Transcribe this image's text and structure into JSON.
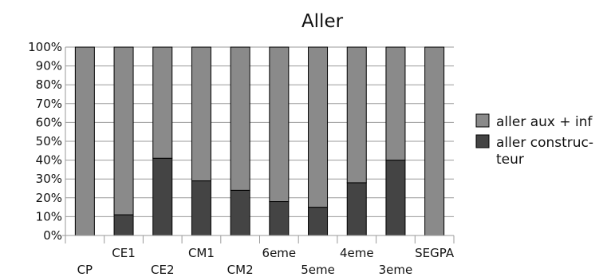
{
  "chart_data": {
    "type": "bar",
    "stacked": true,
    "percent_stacked": true,
    "title": "Aller",
    "xlabel": "",
    "ylabel": "",
    "ylim": [
      0,
      100
    ],
    "yticks": [
      "0%",
      "10%",
      "20%",
      "30%",
      "40%",
      "50%",
      "60%",
      "70%",
      "80%",
      "90%",
      "100%"
    ],
    "categories": [
      "CP",
      "CE1",
      "CE2",
      "CM1",
      "CM2",
      "6eme",
      "5eme",
      "4eme",
      "3eme",
      "SEGPA"
    ],
    "series": [
      {
        "name": "aller constructeur",
        "legend_lines": [
          "aller construc-",
          "teur"
        ],
        "color": "#444444",
        "values": [
          0,
          11,
          41,
          29,
          24,
          18,
          15,
          28,
          40,
          0
        ]
      },
      {
        "name": "aller aux + inf",
        "legend_lines": [
          "aller aux + inf"
        ],
        "color": "#8a8a8a",
        "values": [
          100,
          89,
          59,
          71,
          76,
          82,
          85,
          72,
          60,
          100
        ]
      }
    ],
    "legend": {
      "position": "right",
      "order": [
        1,
        0
      ]
    },
    "grid": true
  }
}
